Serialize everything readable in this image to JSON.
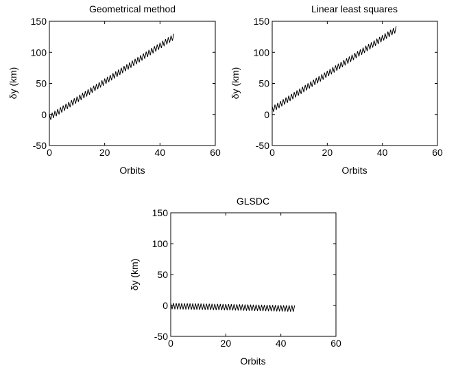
{
  "chart_data": [
    {
      "type": "line",
      "title": "Geometrical method",
      "xlabel": "Orbits",
      "ylabel": "δy (km)",
      "xlim": [
        0,
        60
      ],
      "ylim": [
        -50,
        150
      ],
      "xticks": [
        0,
        20,
        40,
        60
      ],
      "yticks": [
        -50,
        0,
        50,
        100,
        150
      ],
      "series": [
        {
          "x_start": 0,
          "x_end": 45,
          "trend_start": -5,
          "trend_end": 125,
          "oscillation_amplitude": 5,
          "orbits_per_cycle": 0.5
        }
      ]
    },
    {
      "type": "line",
      "title": "Linear least squares",
      "xlabel": "Orbits",
      "ylabel": "δy (km)",
      "xlim": [
        0,
        60
      ],
      "ylim": [
        -50,
        150
      ],
      "xticks": [
        0,
        20,
        40,
        60
      ],
      "yticks": [
        -50,
        0,
        50,
        100,
        150
      ],
      "series": [
        {
          "x_start": 0,
          "x_end": 45,
          "trend_start": 8,
          "trend_end": 137,
          "oscillation_amplitude": 5,
          "orbits_per_cycle": 0.5
        }
      ]
    },
    {
      "type": "line",
      "title": "GLSDC",
      "xlabel": "Orbits",
      "ylabel": "δy (km)",
      "xlim": [
        0,
        60
      ],
      "ylim": [
        -50,
        150
      ],
      "xticks": [
        0,
        20,
        40,
        60
      ],
      "yticks": [
        -50,
        0,
        50,
        100,
        150
      ],
      "series": [
        {
          "x_start": 0,
          "x_end": 45,
          "trend_start": -1,
          "trend_end": -5,
          "oscillation_amplitude": 5,
          "orbits_per_cycle": 0.5
        }
      ]
    }
  ]
}
